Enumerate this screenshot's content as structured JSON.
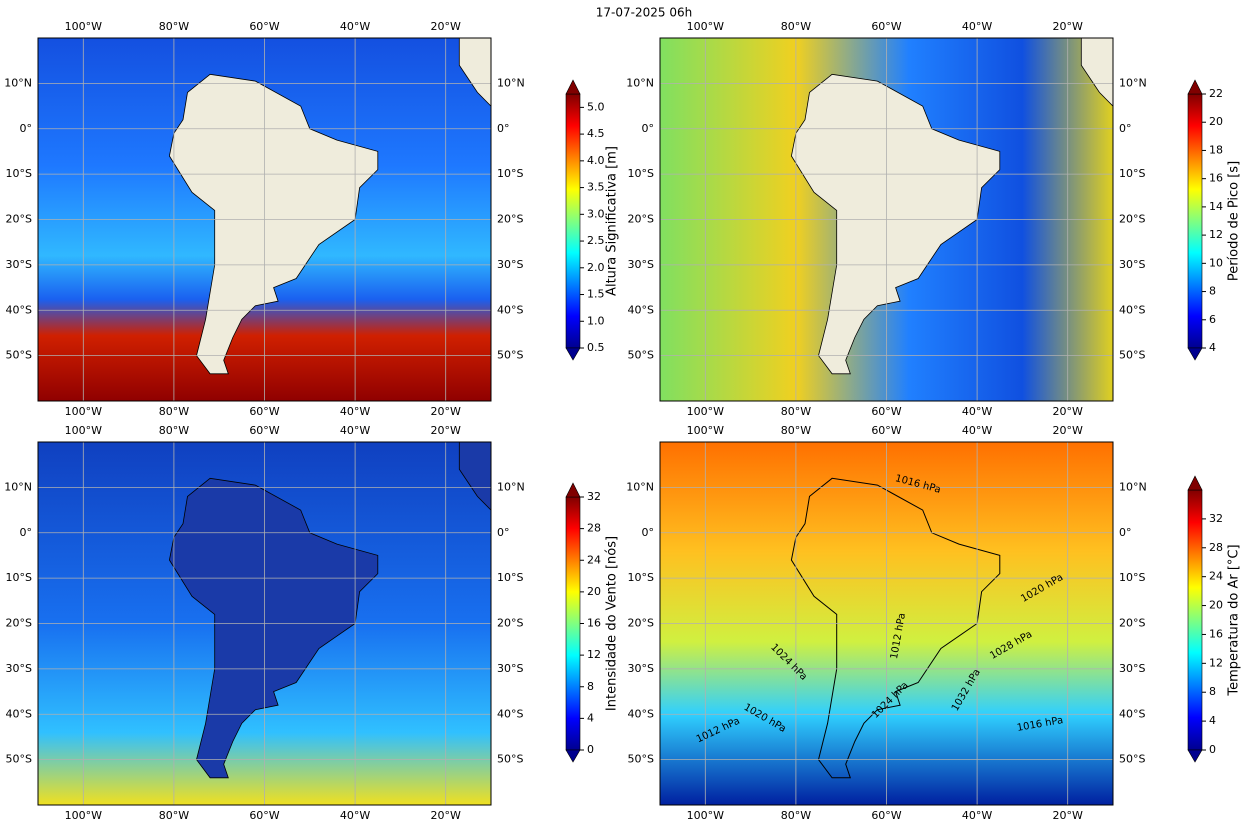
{
  "title": "17-07-2025 06h",
  "map": {
    "lonlim": [
      -110,
      -10
    ],
    "latlim": [
      -60,
      20
    ],
    "lon_ticks": [
      {
        "value": -100,
        "label": "100°W"
      },
      {
        "value": -80,
        "label": "80°W"
      },
      {
        "value": -60,
        "label": "60°W"
      },
      {
        "value": -40,
        "label": "40°W"
      },
      {
        "value": -20,
        "label": "20°W"
      }
    ],
    "lat_ticks": [
      {
        "value": 10,
        "label": "10°N"
      },
      {
        "value": 0,
        "label": "0°"
      },
      {
        "value": -10,
        "label": "10°S"
      },
      {
        "value": -20,
        "label": "20°S"
      },
      {
        "value": -30,
        "label": "30°S"
      },
      {
        "value": -40,
        "label": "40°S"
      },
      {
        "value": -50,
        "label": "50°S"
      }
    ]
  },
  "panels": [
    {
      "colorbar": {
        "label": "Altura Significativa [m]",
        "lim": [
          0.5,
          5.25
        ],
        "ticks": [
          0.5,
          {
            "value": 1,
            "label": "1.0"
          },
          1.5,
          {
            "value": 2,
            "label": "2.0"
          },
          2.5,
          {
            "value": 3,
            "label": "3.0"
          },
          3.5,
          {
            "value": 4,
            "label": "4.0"
          },
          4.5,
          {
            "value": 5,
            "label": "5.0"
          }
        ]
      }
    },
    {
      "colorbar": {
        "label": "Período de Pico [s]",
        "lim": [
          4,
          22
        ],
        "ticks": [
          4,
          6,
          8,
          10,
          12,
          14,
          16,
          18,
          20,
          22
        ]
      }
    },
    {
      "colorbar": {
        "label": "Intensidade do Vento [nós]",
        "lim": [
          0,
          32
        ],
        "ticks": [
          0,
          4,
          8,
          12,
          16,
          20,
          24,
          28,
          32
        ]
      }
    },
    {
      "colorbar": {
        "label": "Temperatura do Ar [°C]",
        "lim": [
          0,
          36
        ],
        "ticks": [
          0,
          4,
          8,
          12,
          16,
          20,
          24,
          28,
          32
        ]
      },
      "contour_labels": [
        "1016 hPa",
        "1020 hPa",
        "1028 hPa",
        "1032 hPa",
        "1016 hPa",
        "1024 hPa",
        "1012 hPa",
        "1024 hPa",
        "1020 hPa",
        "1012 hPa"
      ]
    }
  ]
}
